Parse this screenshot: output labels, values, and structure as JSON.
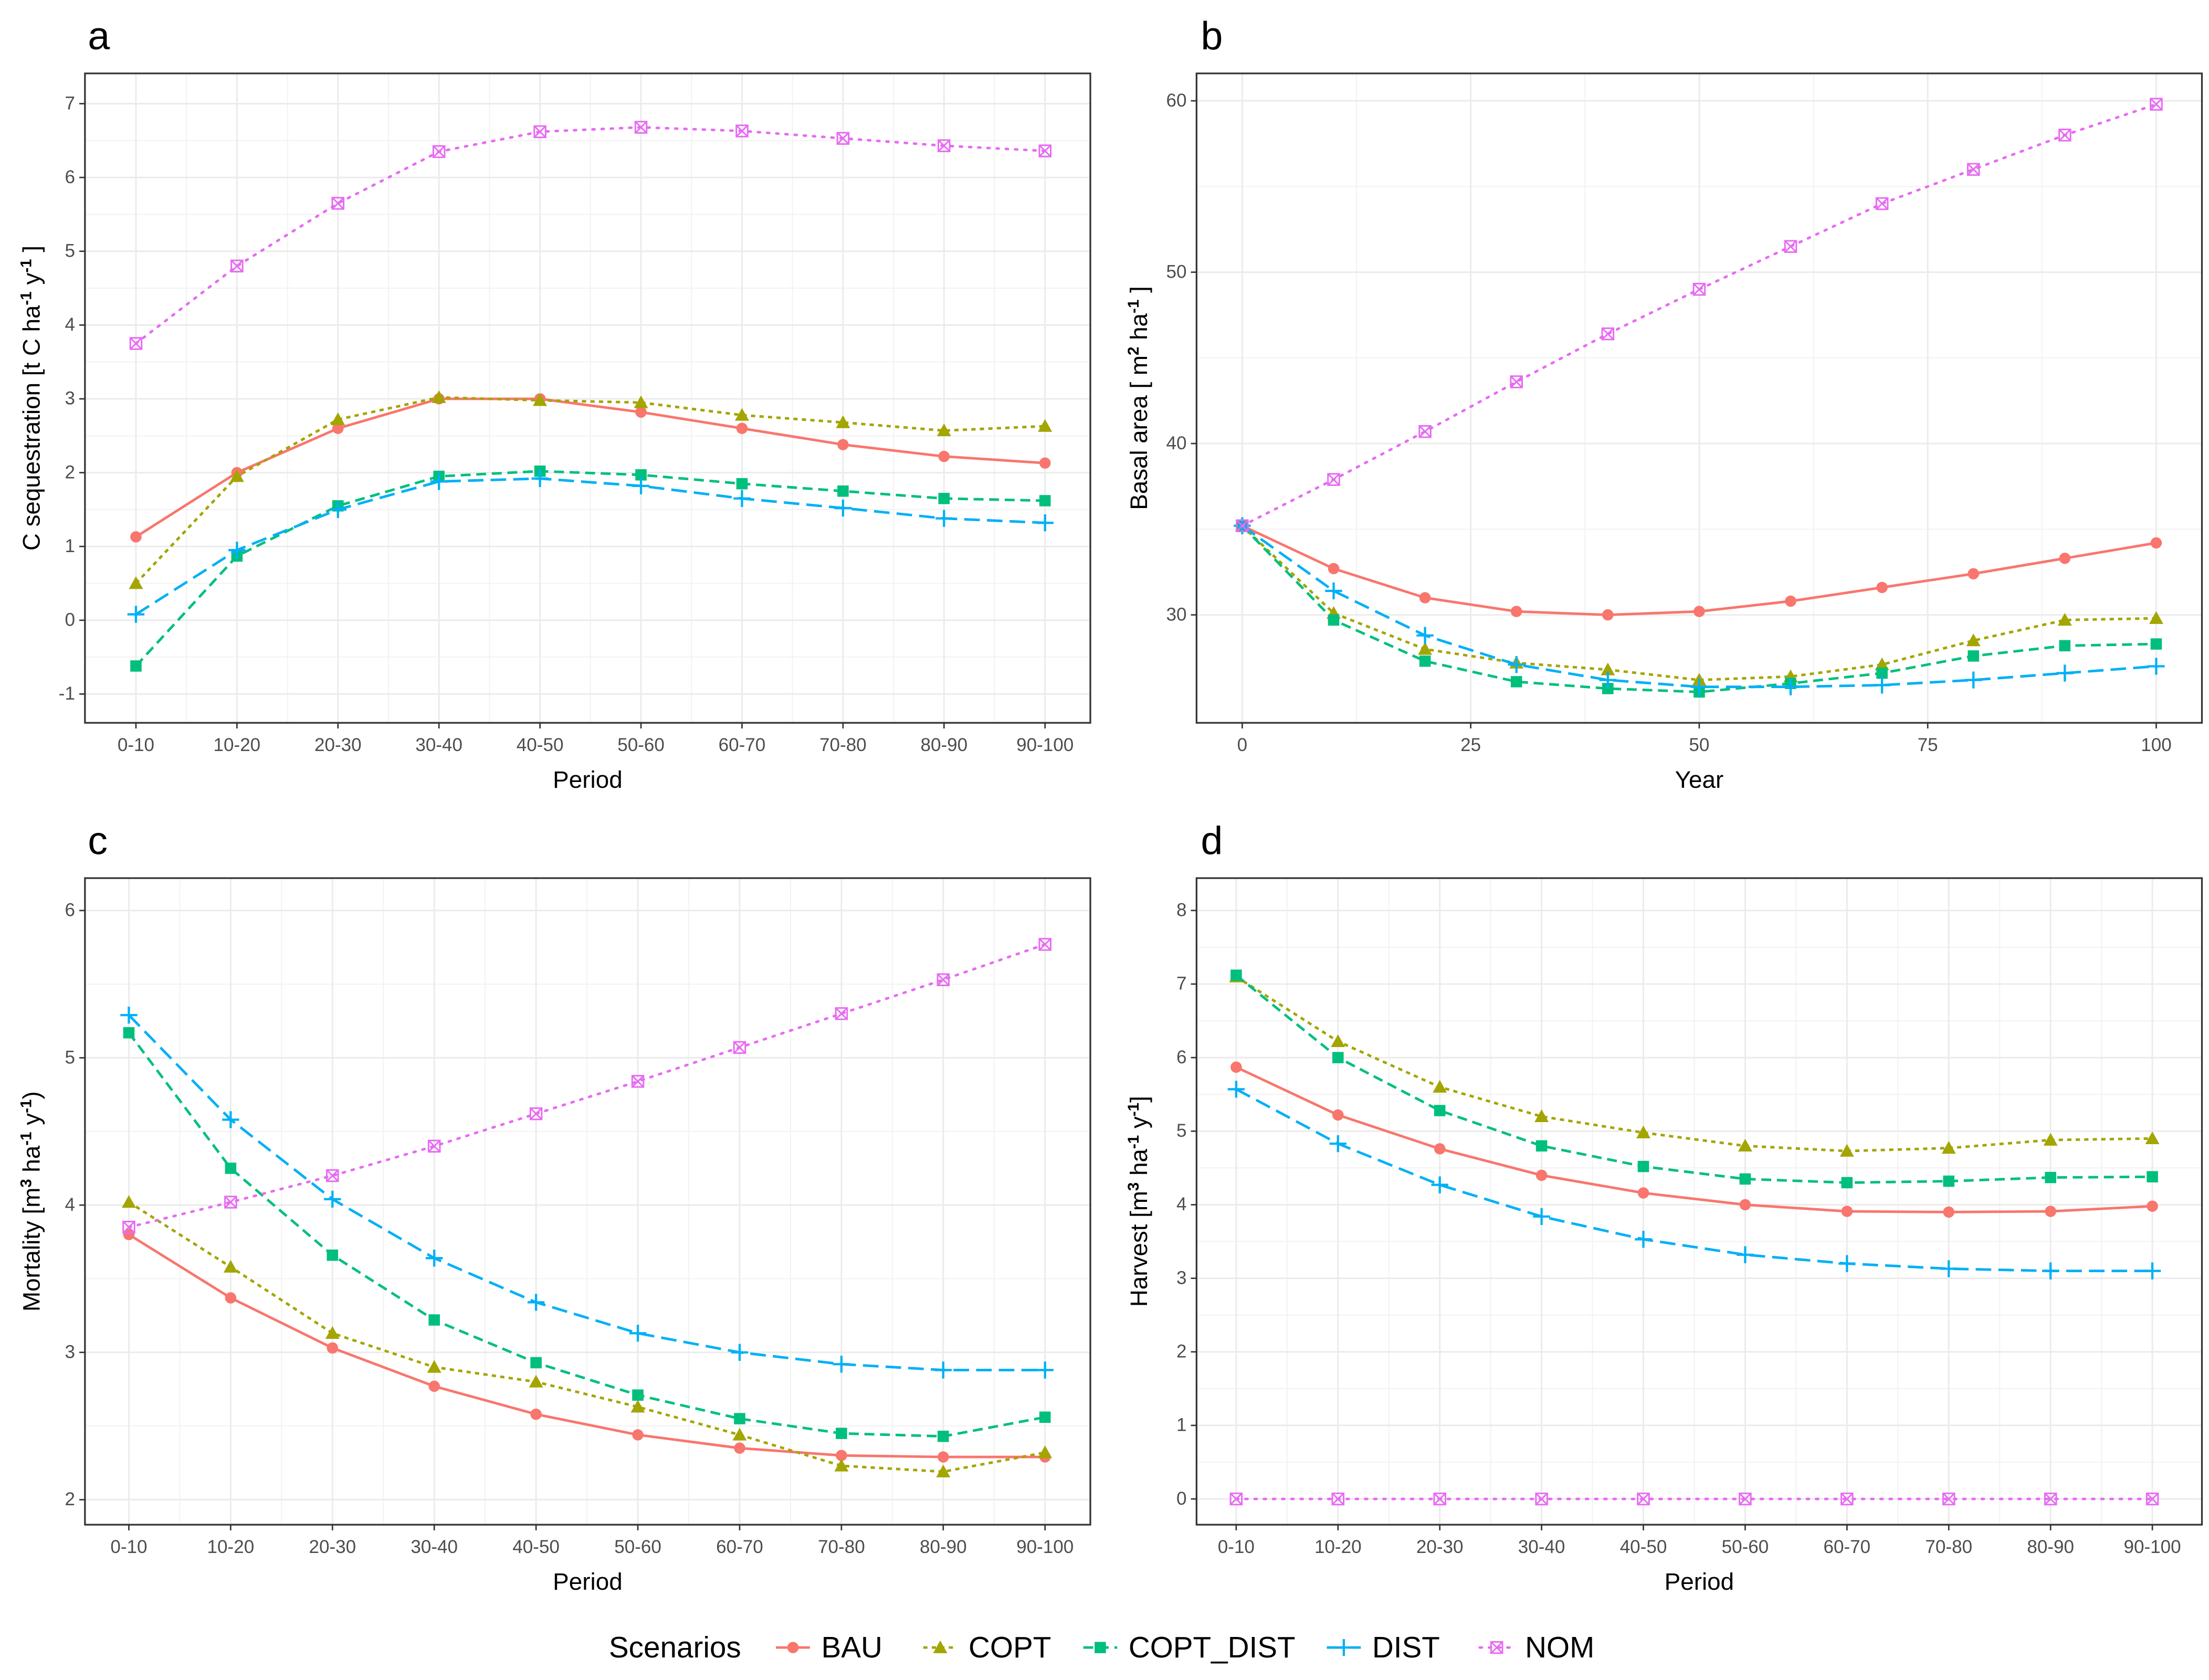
{
  "legend": {
    "title": "Scenarios",
    "position": "bottom",
    "items": [
      {
        "name": "BAU",
        "color": "#F8766D",
        "shape": "circle",
        "linetype": "solid"
      },
      {
        "name": "COPT",
        "color": "#A3A500",
        "shape": "triangle",
        "linetype": "dotdash"
      },
      {
        "name": "COPT_DIST",
        "color": "#00BF7D",
        "shape": "square",
        "linetype": "dashed"
      },
      {
        "name": "DIST",
        "color": "#00B0F6",
        "shape": "plus",
        "linetype": "longdash"
      },
      {
        "name": "NOM",
        "color": "#E76BF3",
        "shape": "square-cross",
        "linetype": "dotted"
      }
    ]
  },
  "chart_data": [
    {
      "panel": "a",
      "type": "line",
      "xtype": "categorical",
      "xlabel": "Period",
      "ylabel_parts": [
        "C sequestration [t C ha",
        "-1",
        "  y",
        "-1",
        " ]"
      ],
      "categories": [
        "0-10",
        "10-20",
        "20-30",
        "30-40",
        "40-50",
        "50-60",
        "60-70",
        "70-80",
        "80-90",
        "90-100"
      ],
      "yticks": [
        -1,
        0,
        1,
        2,
        3,
        4,
        5,
        6,
        7
      ],
      "ylim": [
        -1.39,
        7.41
      ],
      "grid": true,
      "series": [
        {
          "name": "BAU",
          "values": [
            1.13,
            2.0,
            2.6,
            3.0,
            3.0,
            2.82,
            2.6,
            2.38,
            2.22,
            2.13
          ]
        },
        {
          "name": "COPT",
          "values": [
            0.5,
            1.95,
            2.72,
            3.02,
            2.98,
            2.95,
            2.78,
            2.68,
            2.57,
            2.63
          ]
        },
        {
          "name": "COPT_DIST",
          "values": [
            -0.62,
            0.87,
            1.55,
            1.95,
            2.02,
            1.97,
            1.85,
            1.75,
            1.65,
            1.62
          ]
        },
        {
          "name": "DIST",
          "values": [
            0.08,
            0.95,
            1.5,
            1.88,
            1.92,
            1.82,
            1.65,
            1.52,
            1.38,
            1.32
          ]
        },
        {
          "name": "NOM",
          "values": [
            3.75,
            4.8,
            5.65,
            6.35,
            6.62,
            6.68,
            6.63,
            6.53,
            6.43,
            6.36
          ]
        }
      ]
    },
    {
      "panel": "b",
      "type": "line",
      "xtype": "numeric",
      "xlabel": "Year",
      "ylabel_parts": [
        "Basal area [ m",
        "2",
        "  ha",
        "-1",
        " ]"
      ],
      "x": [
        0,
        10,
        20,
        30,
        40,
        50,
        60,
        70,
        80,
        90,
        100
      ],
      "xticks": [
        0,
        25,
        50,
        75,
        100
      ],
      "xlim": [
        -5,
        105
      ],
      "yticks": [
        30,
        40,
        50,
        60
      ],
      "ylim": [
        23.7,
        61.6
      ],
      "grid": true,
      "series": [
        {
          "name": "BAU",
          "values": [
            35.2,
            32.7,
            31.0,
            30.2,
            30.0,
            30.2,
            30.8,
            31.6,
            32.4,
            33.3,
            34.2
          ]
        },
        {
          "name": "COPT",
          "values": [
            35.2,
            30.1,
            28.0,
            27.2,
            26.8,
            26.2,
            26.4,
            27.1,
            28.5,
            29.7,
            29.8
          ]
        },
        {
          "name": "COPT_DIST",
          "values": [
            35.2,
            29.7,
            27.3,
            26.1,
            25.7,
            25.5,
            26.0,
            26.6,
            27.6,
            28.2,
            28.3
          ]
        },
        {
          "name": "DIST",
          "values": [
            35.2,
            31.4,
            28.8,
            27.1,
            26.2,
            25.8,
            25.8,
            25.9,
            26.2,
            26.6,
            27.0
          ]
        },
        {
          "name": "NOM",
          "values": [
            35.2,
            37.9,
            40.7,
            43.6,
            46.4,
            49.0,
            51.5,
            54.0,
            56.0,
            58.0,
            59.8
          ]
        }
      ]
    },
    {
      "panel": "c",
      "type": "line",
      "xtype": "categorical",
      "xlabel": "Period",
      "ylabel_parts": [
        "Mortality [m",
        "3",
        "  ha",
        "-1",
        "  y",
        "-1",
        ")"
      ],
      "categories": [
        "0-10",
        "10-20",
        "20-30",
        "30-40",
        "40-50",
        "50-60",
        "60-70",
        "70-80",
        "80-90",
        "90-100"
      ],
      "yticks": [
        2,
        3,
        4,
        5,
        6
      ],
      "ylim": [
        1.83,
        6.22
      ],
      "grid": true,
      "series": [
        {
          "name": "BAU",
          "values": [
            3.8,
            3.37,
            3.03,
            2.77,
            2.58,
            2.44,
            2.35,
            2.3,
            2.29,
            2.29
          ]
        },
        {
          "name": "COPT",
          "values": [
            4.02,
            3.58,
            3.13,
            2.9,
            2.8,
            2.63,
            2.44,
            2.23,
            2.19,
            2.32
          ]
        },
        {
          "name": "COPT_DIST",
          "values": [
            5.17,
            4.25,
            3.66,
            3.22,
            2.93,
            2.71,
            2.55,
            2.45,
            2.43,
            2.56
          ]
        },
        {
          "name": "DIST",
          "values": [
            5.29,
            4.58,
            4.04,
            3.64,
            3.34,
            3.13,
            3.0,
            2.92,
            2.88,
            2.88
          ]
        },
        {
          "name": "NOM",
          "values": [
            3.85,
            4.02,
            4.2,
            4.4,
            4.62,
            4.84,
            5.07,
            5.3,
            5.53,
            5.77
          ]
        }
      ]
    },
    {
      "panel": "d",
      "type": "line",
      "xtype": "categorical",
      "xlabel": "Period",
      "ylabel_parts": [
        "Harvest [m",
        "3",
        "  ha",
        "-1",
        "  y",
        "-1",
        "]"
      ],
      "categories": [
        "0-10",
        "10-20",
        "20-30",
        "30-40",
        "40-50",
        "50-60",
        "60-70",
        "70-80",
        "80-90",
        "90-100"
      ],
      "yticks": [
        0,
        1,
        2,
        3,
        4,
        5,
        6,
        7,
        8
      ],
      "ylim": [
        -0.35,
        8.44
      ],
      "grid": true,
      "series": [
        {
          "name": "BAU",
          "values": [
            5.87,
            5.22,
            4.76,
            4.4,
            4.16,
            4.0,
            3.91,
            3.9,
            3.91,
            3.98
          ]
        },
        {
          "name": "COPT",
          "values": [
            7.1,
            6.22,
            5.6,
            5.2,
            4.98,
            4.8,
            4.73,
            4.77,
            4.88,
            4.9
          ]
        },
        {
          "name": "COPT_DIST",
          "values": [
            7.12,
            6.0,
            5.28,
            4.8,
            4.52,
            4.35,
            4.3,
            4.32,
            4.37,
            4.38
          ]
        },
        {
          "name": "DIST",
          "values": [
            5.57,
            4.83,
            4.27,
            3.84,
            3.53,
            3.32,
            3.2,
            3.13,
            3.1,
            3.1
          ]
        },
        {
          "name": "NOM",
          "values": [
            0,
            0,
            0,
            0,
            0,
            0,
            0,
            0,
            0,
            0
          ]
        }
      ]
    }
  ]
}
